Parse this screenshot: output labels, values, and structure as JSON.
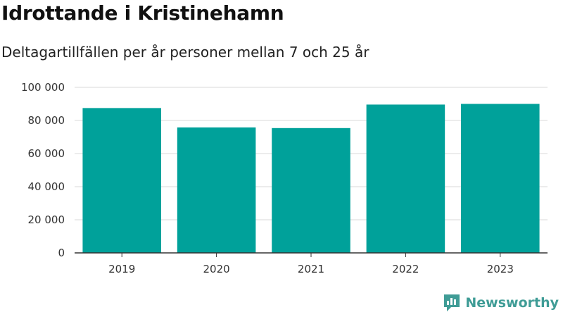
{
  "header": {
    "title": "Idrottande i Kristinehamn",
    "subtitle": "Deltagartillfällen per år personer mellan 7 och 25 år"
  },
  "brand": {
    "name": "Newsworthy",
    "icon": "newsworthy-logo-icon",
    "color": "#3f9c96"
  },
  "chart_data": {
    "type": "bar",
    "categories": [
      "2019",
      "2020",
      "2021",
      "2022",
      "2023"
    ],
    "values": [
      87500,
      75800,
      75400,
      89600,
      90000
    ],
    "ylim": [
      0,
      100000
    ],
    "yticks": [
      {
        "value": 0,
        "label": "0"
      },
      {
        "value": 20000,
        "label": "20 000"
      },
      {
        "value": 40000,
        "label": "40 000"
      },
      {
        "value": 60000,
        "label": "60 000"
      },
      {
        "value": 80000,
        "label": "80 000"
      },
      {
        "value": 100000,
        "label": "100 000"
      }
    ],
    "grid": true,
    "bar_color": "#00a19a",
    "xlabel": "",
    "ylabel": ""
  }
}
